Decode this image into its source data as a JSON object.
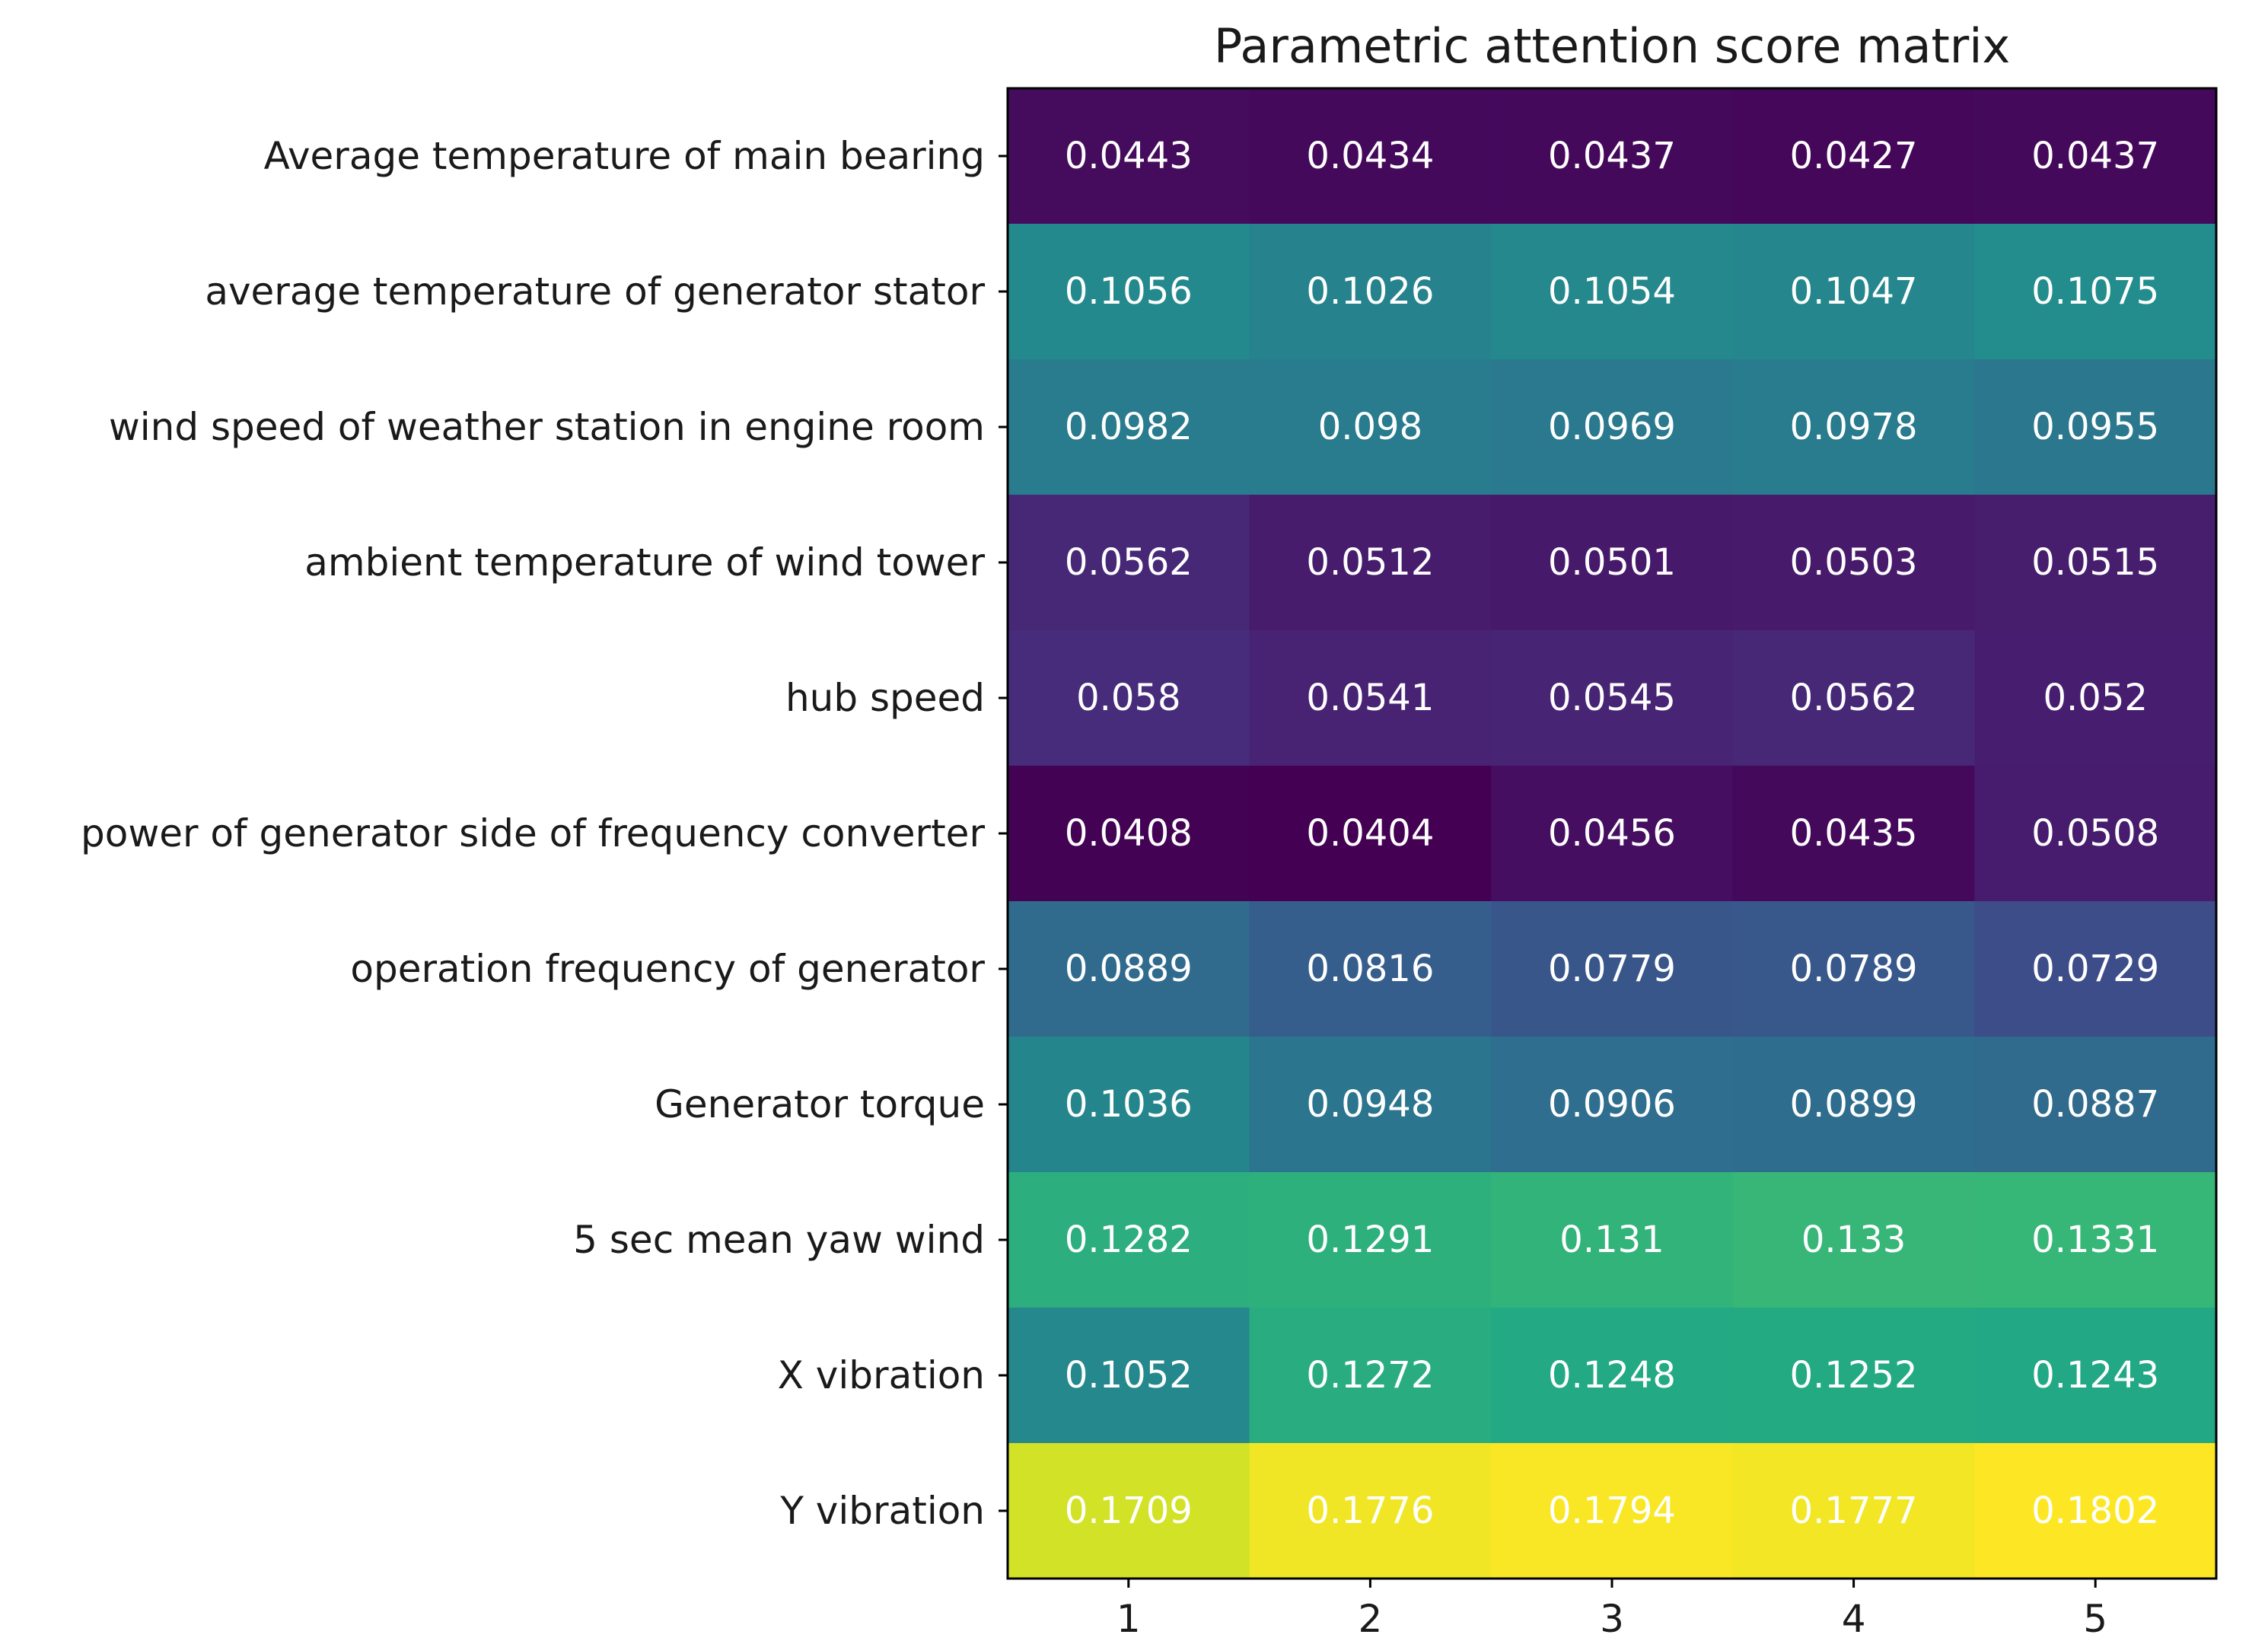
{
  "chart_data": {
    "type": "heatmap",
    "title": "Parametric attention score matrix",
    "xlabel": "",
    "ylabel": "",
    "colormap": "viridis",
    "cell_text_color": "#ffffff",
    "x_ticks": [
      "1",
      "2",
      "3",
      "4",
      "5"
    ],
    "y_ticks": [
      "Average temperature of main bearing",
      "average temperature of generator stator",
      "wind speed of weather station in engine room",
      "ambient temperature of wind tower",
      "hub speed",
      "power of generator side of frequency converter",
      "operation frequency of generator",
      "Generator torque",
      "5 sec mean yaw wind",
      "X vibration",
      "Y vibration"
    ],
    "values": [
      [
        0.0443,
        0.0434,
        0.0437,
        0.0427,
        0.0437
      ],
      [
        0.1056,
        0.1026,
        0.1054,
        0.1047,
        0.1075
      ],
      [
        0.0982,
        0.098,
        0.0969,
        0.0978,
        0.0955
      ],
      [
        0.0562,
        0.0512,
        0.0501,
        0.0503,
        0.0515
      ],
      [
        0.058,
        0.0541,
        0.0545,
        0.0562,
        0.052
      ],
      [
        0.0408,
        0.0404,
        0.0456,
        0.0435,
        0.0508
      ],
      [
        0.0889,
        0.0816,
        0.0779,
        0.0789,
        0.0729
      ],
      [
        0.1036,
        0.0948,
        0.0906,
        0.0899,
        0.0887
      ],
      [
        0.1282,
        0.1291,
        0.131,
        0.133,
        0.1331
      ],
      [
        0.1052,
        0.1272,
        0.1248,
        0.1252,
        0.1243
      ],
      [
        0.1709,
        0.1776,
        0.1794,
        0.1777,
        0.1802
      ]
    ],
    "value_labels": [
      [
        "0.0443",
        "0.0434",
        "0.0437",
        "0.0427",
        "0.0437"
      ],
      [
        "0.1056",
        "0.1026",
        "0.1054",
        "0.1047",
        "0.1075"
      ],
      [
        "0.0982",
        "0.098",
        "0.0969",
        "0.0978",
        "0.0955"
      ],
      [
        "0.0562",
        "0.0512",
        "0.0501",
        "0.0503",
        "0.0515"
      ],
      [
        "0.058",
        "0.0541",
        "0.0545",
        "0.0562",
        "0.052"
      ],
      [
        "0.0408",
        "0.0404",
        "0.0456",
        "0.0435",
        "0.0508"
      ],
      [
        "0.0889",
        "0.0816",
        "0.0779",
        "0.0789",
        "0.0729"
      ],
      [
        "0.1036",
        "0.0948",
        "0.0906",
        "0.0899",
        "0.0887"
      ],
      [
        "0.1282",
        "0.1291",
        "0.131",
        "0.133",
        "0.1331"
      ],
      [
        "0.1052",
        "0.1272",
        "0.1248",
        "0.1252",
        "0.1243"
      ],
      [
        "0.1709",
        "0.1776",
        "0.1794",
        "0.1777",
        "0.1802"
      ]
    ]
  }
}
